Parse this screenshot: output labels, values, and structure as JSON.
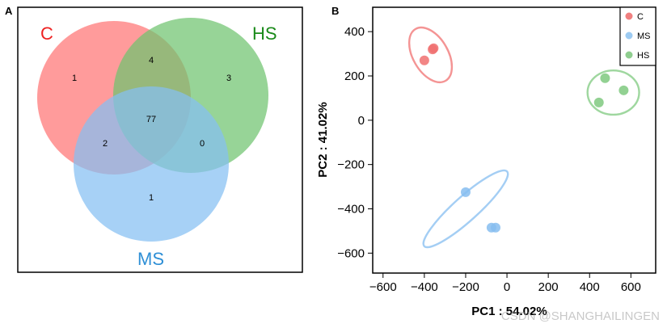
{
  "panel_a": {
    "label": "A",
    "sets": [
      {
        "name": "C",
        "color": "#ee2222",
        "fill": "#ff7f7f"
      },
      {
        "name": "HS",
        "color": "#1a8a1a",
        "fill": "#6fc46f"
      },
      {
        "name": "MS",
        "color": "#2e8fd6",
        "fill": "#85bff2"
      }
    ],
    "regions": {
      "C_only": "1",
      "HS_only": "3",
      "MS_only": "1",
      "C_HS": "4",
      "C_MS": "2",
      "HS_MS": "0",
      "C_HS_MS": "77"
    }
  },
  "panel_b": {
    "label": "B",
    "xlabel": "PC1 : 54.02%",
    "ylabel": "PC2 : 41.02%",
    "xticks": [
      "−600",
      "−400",
      "−200",
      "0",
      "200",
      "400",
      "600"
    ],
    "yticks": [
      "400",
      "200",
      "0",
      "−200",
      "−400",
      "−600"
    ],
    "legend": [
      {
        "name": "C",
        "color": "#f08080"
      },
      {
        "name": "MS",
        "color": "#9dcbf2"
      },
      {
        "name": "HS",
        "color": "#8fce8f"
      }
    ]
  },
  "chart_data": {
    "type": "scatter",
    "xlabel": "PC1 : 54.02%",
    "ylabel": "PC2 : 41.02%",
    "xlim": [
      -650,
      720
    ],
    "ylim": [
      -690,
      510
    ],
    "xticks": [
      -600,
      -400,
      -200,
      0,
      200,
      400,
      600
    ],
    "yticks": [
      -600,
      -400,
      -200,
      0,
      200,
      400
    ],
    "grid": false,
    "legend_position": "top-right",
    "series": [
      {
        "name": "C",
        "color": "#f07070",
        "x": [
          -400,
          -360,
          -355
        ],
        "y": [
          270,
          320,
          325
        ]
      },
      {
        "name": "MS",
        "color": "#86bdf0",
        "x": [
          -200,
          -75,
          -55
        ],
        "y": [
          -325,
          -485,
          -485
        ]
      },
      {
        "name": "HS",
        "color": "#7fc97f",
        "x": [
          445,
          475,
          565
        ],
        "y": [
          80,
          190,
          135
        ]
      }
    ],
    "ellipses": [
      {
        "group": "C",
        "cx": -370,
        "cy": 295,
        "rx": 85,
        "ry": 135,
        "angle": 30
      },
      {
        "group": "MS",
        "cx": -200,
        "cy": -400,
        "rx": 270,
        "ry": 55,
        "angle": 42
      },
      {
        "group": "HS",
        "cx": 515,
        "cy": 125,
        "rx": 125,
        "ry": 100,
        "angle": 0
      }
    ]
  },
  "watermark": "CSDN @SHANGHAILINGEN"
}
